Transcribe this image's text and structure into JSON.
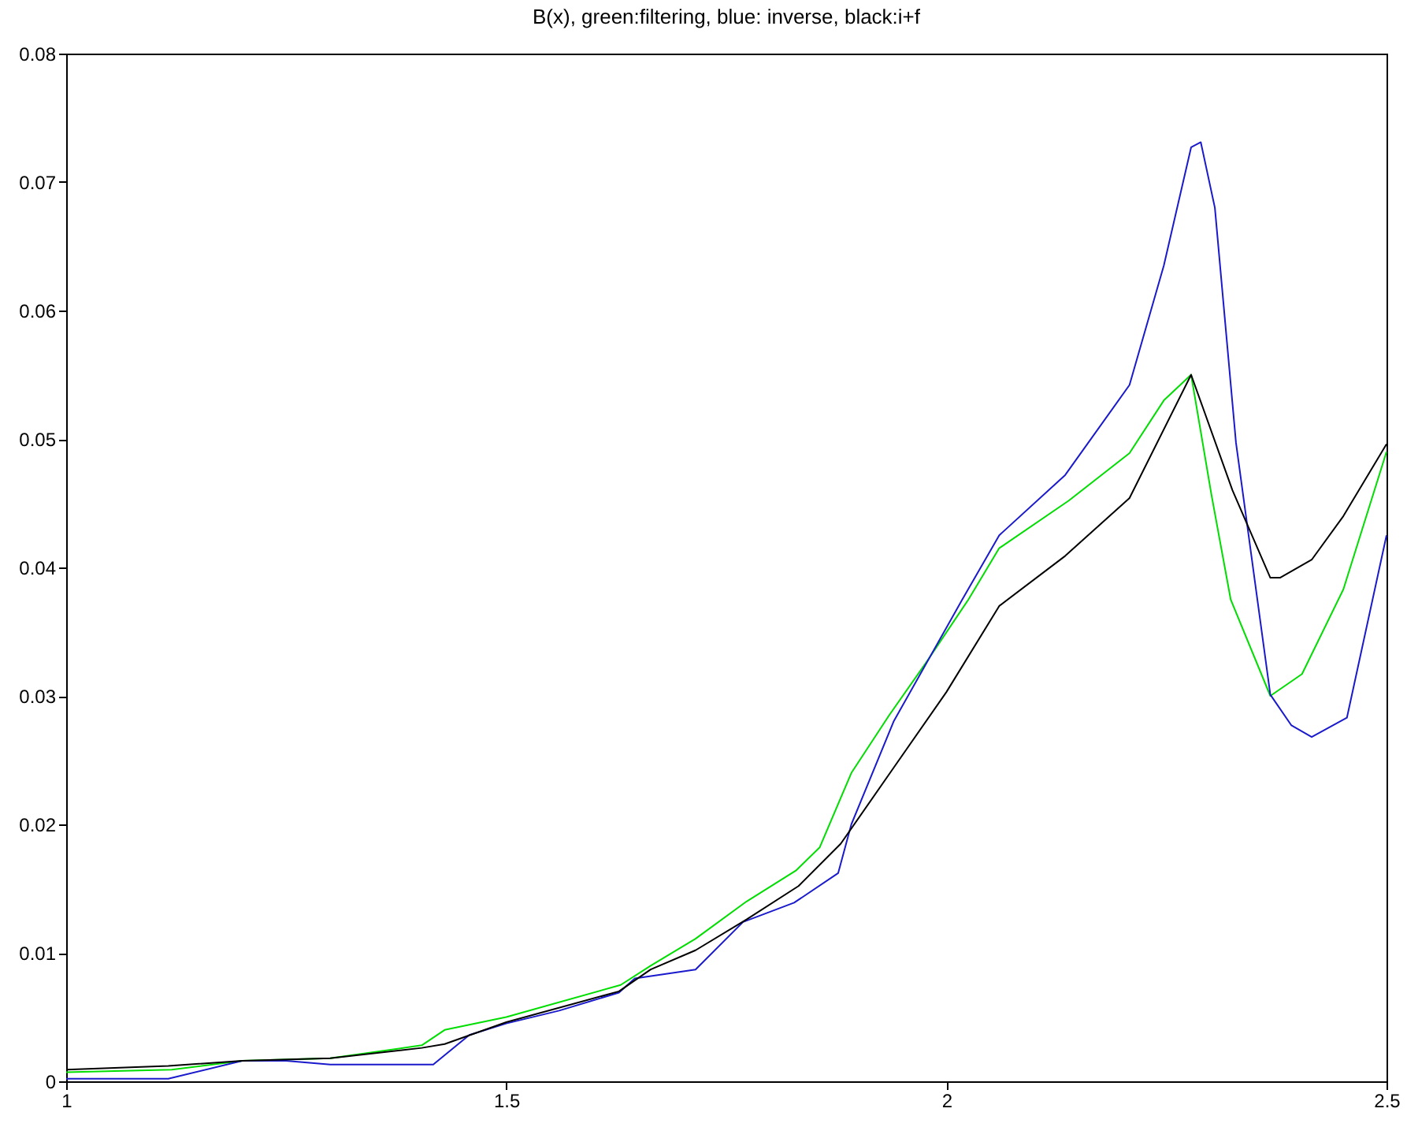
{
  "chart_data": {
    "type": "line",
    "title": "B(x), green:filtering, blue: inverse, black:i+f",
    "xlim": [
      1,
      2.5
    ],
    "xticks": [
      1,
      1.5,
      2,
      2.5
    ],
    "ylim": [
      0,
      0.08
    ],
    "yticks": [
      0,
      0.01,
      0.02,
      0.03,
      0.04,
      0.05,
      0.06,
      0.07,
      0.08
    ],
    "grid": false,
    "legend": false,
    "marker": "none",
    "line_style": "solid",
    "series": [
      {
        "color": "#00dd00",
        "x": [
          1.0,
          1.12,
          1.2,
          1.3,
          1.404,
          1.43,
          1.5,
          1.63,
          1.664,
          1.715,
          1.773,
          1.829,
          1.856,
          1.892,
          1.935,
          1.977,
          2.025,
          2.06,
          2.139,
          2.208,
          2.247,
          2.278,
          2.301,
          2.323,
          2.368,
          2.404,
          2.451,
          2.5
        ],
        "values": [
          0.0007,
          0.0009,
          0.0016,
          0.0018,
          0.0028,
          0.004,
          0.005,
          0.0075,
          0.009,
          0.0111,
          0.014,
          0.0164,
          0.0182,
          0.024,
          0.0285,
          0.0326,
          0.0375,
          0.0415,
          0.0452,
          0.0489,
          0.053,
          0.055,
          0.0457,
          0.0375,
          0.03,
          0.0317,
          0.0383,
          0.049
        ]
      },
      {
        "color": "#1a1acc",
        "x": [
          1.0,
          1.116,
          1.2,
          1.25,
          1.3,
          1.417,
          1.458,
          1.5,
          1.56,
          1.628,
          1.646,
          1.715,
          1.769,
          1.827,
          1.877,
          1.892,
          1.94,
          2.018,
          2.06,
          2.135,
          2.208,
          2.247,
          2.278,
          2.289,
          2.305,
          2.329,
          2.368,
          2.392,
          2.415,
          2.455,
          2.5
        ],
        "values": [
          0.0002,
          0.0002,
          0.0016,
          0.0016,
          0.0013,
          0.0013,
          0.0036,
          0.0045,
          0.0055,
          0.0069,
          0.008,
          0.0087,
          0.0124,
          0.0139,
          0.0162,
          0.02,
          0.028,
          0.0375,
          0.0425,
          0.0472,
          0.0542,
          0.0635,
          0.0727,
          0.0731,
          0.068,
          0.0497,
          0.0301,
          0.0277,
          0.0268,
          0.0283,
          0.0425
        ]
      },
      {
        "color": "#000000",
        "x": [
          1.0,
          1.116,
          1.2,
          1.3,
          1.404,
          1.43,
          1.5,
          1.628,
          1.664,
          1.715,
          1.773,
          1.832,
          1.88,
          1.94,
          2.0,
          2.06,
          2.135,
          2.208,
          2.278,
          2.325,
          2.368,
          2.379,
          2.415,
          2.451,
          2.5
        ],
        "values": [
          0.0009,
          0.0012,
          0.0016,
          0.0018,
          0.0026,
          0.0029,
          0.0046,
          0.007,
          0.0087,
          0.0102,
          0.0126,
          0.0152,
          0.0185,
          0.0244,
          0.0303,
          0.037,
          0.0409,
          0.0454,
          0.055,
          0.046,
          0.0392,
          0.0392,
          0.0406,
          0.044,
          0.0496
        ]
      }
    ]
  }
}
